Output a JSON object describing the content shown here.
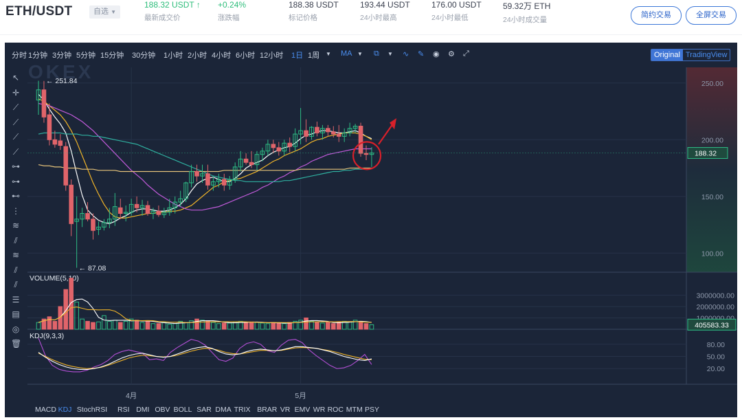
{
  "header": {
    "pair": "ETH/USDT",
    "fav_label": "自选",
    "last_price": "188.32 USDT",
    "last_price_label": "最新成交价",
    "change": "+0.24%",
    "change_label": "涨跌幅",
    "mark_price": "188.38 USDT",
    "mark_price_label": "标记价格",
    "high": "193.44 USDT",
    "high_label": "24小时最高",
    "low": "176.00 USDT",
    "low_label": "24小时最低",
    "volume": "59.32万 ETH",
    "volume_label": "24小时成交量",
    "btn_simple": "简约交易",
    "btn_full": "全屏交易",
    "up_arrow": "↑"
  },
  "toolbar": {
    "intervals": [
      "分时",
      "1分钟",
      "3分钟",
      "5分钟",
      "15分钟",
      "30分钟",
      "1小时",
      "2小时",
      "4小时",
      "6小时",
      "12小时",
      "1日",
      "1周"
    ],
    "selected_interval": "1日",
    "indicator": "MA",
    "view_original": "Original",
    "view_tradingview": "TradingView",
    "icons": [
      "caret-down-icon",
      "candle-type-icon",
      "line-icon",
      "draw-icon",
      "camera-icon",
      "gear-icon",
      "fullscreen-icon"
    ]
  },
  "sidebar_icons": [
    "cursor-icon",
    "crosshair-icon",
    "trendline-icon",
    "ray-icon",
    "extended-line-icon",
    "segment-icon",
    "horizontal-line-icon",
    "horizontal-ray-icon",
    "price-line-icon",
    "vertical-line-icon",
    "parallel-channel-icon",
    "pitchfork-icon",
    "fib-icon",
    "gann-icon",
    "fib-fan-icon",
    "stack-icon",
    "ruler-icon",
    "eye-icon",
    "trash-icon"
  ],
  "watermark": "OKEX",
  "colors": {
    "up": "#2ebd85",
    "down": "#e0646a",
    "ma5": "#ffffff",
    "ma10": "#f0b429",
    "ma20": "#c05ad9",
    "ma30": "#2fb0a0",
    "ma60": "#e6c37a",
    "bg": "#1b2538",
    "accent": "#3a76d8"
  },
  "indicator_tabs": [
    "MACD",
    "KDJ",
    "StochRSI",
    "RSI",
    "DMI",
    "OBV",
    "BOLL",
    "SAR",
    "DMA",
    "TRIX",
    "BRAR",
    "VR",
    "EMV",
    "WR",
    "ROC",
    "MTM",
    "PSY"
  ],
  "selected_indicator_tab": "KDJ",
  "chart_data": {
    "type": "candlestick",
    "price_axis": {
      "ticks": [
        "250.00",
        "200.00",
        "150.00",
        "100.00"
      ],
      "range": [
        85,
        262
      ]
    },
    "current_price_label": "188.32",
    "annotations": {
      "high": "← 251.84",
      "low": "← 87.08"
    },
    "x_labels": [
      {
        "index": 17,
        "label": "4月"
      },
      {
        "index": 48,
        "label": "5月"
      }
    ],
    "candles": [
      {
        "o": 235,
        "h": 252,
        "l": 222,
        "c": 244
      },
      {
        "o": 244,
        "h": 251.84,
        "l": 215,
        "c": 220
      },
      {
        "o": 222,
        "h": 232,
        "l": 195,
        "c": 200
      },
      {
        "o": 200,
        "h": 208,
        "l": 193,
        "c": 196
      },
      {
        "o": 199,
        "h": 205,
        "l": 191,
        "c": 195
      },
      {
        "o": 194,
        "h": 198,
        "l": 155,
        "c": 160
      },
      {
        "o": 160,
        "h": 165,
        "l": 115,
        "c": 126
      },
      {
        "o": 128,
        "h": 150,
        "l": 87.08,
        "c": 130
      },
      {
        "o": 130,
        "h": 140,
        "l": 123,
        "c": 135
      },
      {
        "o": 135,
        "h": 145,
        "l": 128,
        "c": 130
      },
      {
        "o": 130,
        "h": 135,
        "l": 112,
        "c": 120
      },
      {
        "o": 121,
        "h": 128,
        "l": 116,
        "c": 123
      },
      {
        "o": 123,
        "h": 130,
        "l": 120,
        "c": 127
      },
      {
        "o": 127,
        "h": 140,
        "l": 122,
        "c": 130
      },
      {
        "o": 130,
        "h": 153,
        "l": 124,
        "c": 141
      },
      {
        "o": 140,
        "h": 148,
        "l": 130,
        "c": 135
      },
      {
        "o": 135,
        "h": 142,
        "l": 128,
        "c": 136
      },
      {
        "o": 136,
        "h": 148,
        "l": 133,
        "c": 143
      },
      {
        "o": 143,
        "h": 150,
        "l": 136,
        "c": 140
      },
      {
        "o": 140,
        "h": 147,
        "l": 133,
        "c": 142
      },
      {
        "o": 142,
        "h": 146,
        "l": 133,
        "c": 135
      },
      {
        "o": 135,
        "h": 140,
        "l": 130,
        "c": 137
      },
      {
        "o": 137,
        "h": 142,
        "l": 132,
        "c": 134
      },
      {
        "o": 134,
        "h": 140,
        "l": 131,
        "c": 136
      },
      {
        "o": 136,
        "h": 148,
        "l": 133,
        "c": 140
      },
      {
        "o": 140,
        "h": 150,
        "l": 135,
        "c": 145
      },
      {
        "o": 145,
        "h": 155,
        "l": 141,
        "c": 148
      },
      {
        "o": 148,
        "h": 163,
        "l": 145,
        "c": 162
      },
      {
        "o": 162,
        "h": 178,
        "l": 158,
        "c": 172
      },
      {
        "o": 172,
        "h": 178,
        "l": 163,
        "c": 168
      },
      {
        "o": 168,
        "h": 178,
        "l": 162,
        "c": 170
      },
      {
        "o": 170,
        "h": 178,
        "l": 156,
        "c": 160
      },
      {
        "o": 160,
        "h": 168,
        "l": 155,
        "c": 163
      },
      {
        "o": 163,
        "h": 170,
        "l": 158,
        "c": 165
      },
      {
        "o": 165,
        "h": 170,
        "l": 155,
        "c": 160
      },
      {
        "o": 160,
        "h": 168,
        "l": 156,
        "c": 165
      },
      {
        "o": 165,
        "h": 180,
        "l": 162,
        "c": 176
      },
      {
        "o": 176,
        "h": 190,
        "l": 172,
        "c": 183
      },
      {
        "o": 183,
        "h": 188,
        "l": 178,
        "c": 180
      },
      {
        "o": 180,
        "h": 190,
        "l": 175,
        "c": 178
      },
      {
        "o": 178,
        "h": 190,
        "l": 173,
        "c": 187
      },
      {
        "o": 187,
        "h": 193,
        "l": 181,
        "c": 190
      },
      {
        "o": 190,
        "h": 200,
        "l": 186,
        "c": 196
      },
      {
        "o": 196,
        "h": 200,
        "l": 188,
        "c": 193
      },
      {
        "o": 193,
        "h": 198,
        "l": 186,
        "c": 190
      },
      {
        "o": 190,
        "h": 200,
        "l": 186,
        "c": 197
      },
      {
        "o": 197,
        "h": 202,
        "l": 189,
        "c": 194
      },
      {
        "o": 194,
        "h": 210,
        "l": 190,
        "c": 205
      },
      {
        "o": 205,
        "h": 228,
        "l": 196,
        "c": 208
      },
      {
        "o": 208,
        "h": 218,
        "l": 198,
        "c": 203
      },
      {
        "o": 203,
        "h": 212,
        "l": 200,
        "c": 211
      },
      {
        "o": 211,
        "h": 216,
        "l": 203,
        "c": 206
      },
      {
        "o": 206,
        "h": 213,
        "l": 200,
        "c": 210
      },
      {
        "o": 210,
        "h": 213,
        "l": 203,
        "c": 207
      },
      {
        "o": 207,
        "h": 212,
        "l": 202,
        "c": 205
      },
      {
        "o": 205,
        "h": 213,
        "l": 198,
        "c": 203
      },
      {
        "o": 203,
        "h": 210,
        "l": 198,
        "c": 206
      },
      {
        "o": 206,
        "h": 215,
        "l": 203,
        "c": 210
      },
      {
        "o": 210,
        "h": 214,
        "l": 206,
        "c": 212
      },
      {
        "o": 212,
        "h": 215,
        "l": 185,
        "c": 188
      },
      {
        "o": 188,
        "h": 195,
        "l": 182,
        "c": 187
      },
      {
        "o": 187,
        "h": 193.44,
        "l": 176,
        "c": 188.32
      }
    ],
    "ma_lines": [
      {
        "name": "ma5",
        "values": [
          240,
          235,
          227,
          220,
          214,
          206,
          190,
          170,
          151,
          138,
          133,
          129,
          127,
          126,
          128,
          131,
          133,
          136,
          138,
          139,
          139,
          138,
          137,
          137,
          138,
          140,
          143,
          148,
          155,
          161,
          164,
          166,
          167,
          165,
          163,
          163,
          166,
          170,
          175,
          178,
          180,
          182,
          186,
          189,
          191,
          193,
          194,
          197,
          201,
          204,
          205,
          207,
          208,
          208,
          207,
          206,
          206,
          207,
          208,
          206,
          203,
          201
        ]
      },
      {
        "name": "ma10",
        "values": [
          236,
          234,
          230,
          226,
          222,
          216,
          208,
          198,
          186,
          174,
          162,
          152,
          143,
          136,
          132,
          131,
          131,
          132,
          133,
          134,
          135,
          135,
          136,
          136,
          137,
          137,
          138,
          140,
          142,
          146,
          150,
          154,
          158,
          160,
          163,
          164,
          165,
          166,
          168,
          170,
          172,
          175,
          178,
          181,
          183,
          186,
          188,
          190,
          192,
          195,
          198,
          200,
          201,
          203,
          204,
          205,
          206,
          206,
          206,
          205,
          203,
          200
        ]
      },
      {
        "name": "ma20",
        "values": [
          232,
          231,
          230,
          228,
          226,
          224,
          222,
          219,
          216,
          212,
          208,
          203,
          198,
          193,
          188,
          183,
          178,
          173,
          169,
          165,
          160,
          156,
          152,
          149,
          146,
          143,
          141,
          139,
          138,
          138,
          138,
          139,
          140,
          141,
          143,
          145,
          147,
          149,
          151,
          153,
          155,
          158,
          160,
          163,
          166,
          168,
          171,
          173,
          176,
          178,
          181,
          183,
          185,
          187,
          188,
          189,
          190,
          191,
          192,
          192,
          192,
          192
        ]
      },
      {
        "name": "ma30",
        "values": [
          205,
          206,
          206,
          206,
          206,
          205,
          205,
          205,
          204,
          204,
          203,
          203,
          202,
          201,
          200,
          199,
          198,
          197,
          196,
          194,
          192,
          190,
          188,
          186,
          184,
          182,
          180,
          178,
          176,
          174,
          172,
          170,
          168,
          167,
          166,
          165,
          164,
          164,
          163,
          163,
          163,
          163,
          163,
          163,
          163,
          164,
          164,
          165,
          166,
          167,
          168,
          169,
          170,
          171,
          172,
          172,
          173,
          173,
          174,
          174,
          174,
          175
        ]
      },
      {
        "name": "ma60",
        "values": [
          178,
          177,
          177,
          176,
          176,
          175,
          175,
          175,
          174,
          174,
          174,
          173,
          173,
          173,
          173,
          172,
          172,
          172,
          172,
          172,
          172,
          172,
          172,
          172,
          172,
          172,
          172,
          172,
          172,
          172,
          172,
          172,
          172,
          172,
          173,
          173,
          173,
          173,
          173,
          173,
          173,
          173,
          173,
          173,
          173,
          173,
          173,
          173,
          174,
          174,
          174,
          174,
          174,
          174,
          174,
          174,
          174,
          175,
          175,
          175,
          175,
          175
        ]
      }
    ],
    "volume": {
      "title": "VOLUME(5,10)",
      "ticks": [
        "3000000.00",
        "2000000.00",
        "1000000.00"
      ],
      "current_label": "405583.33",
      "values": [
        600000,
        900000,
        1100000,
        700000,
        2000000,
        3500000,
        4500000,
        2400000,
        900000,
        700000,
        600000,
        650000,
        1200000,
        700000,
        800000,
        600000,
        700000,
        900000,
        800000,
        600000,
        700000,
        500000,
        500000,
        600000,
        450000,
        500000,
        700000,
        600000,
        750000,
        900000,
        800000,
        700000,
        600000,
        500000,
        550000,
        550000,
        650000,
        700000,
        600000,
        650000,
        600000,
        550000,
        500000,
        600000,
        550000,
        500000,
        600000,
        700000,
        800000,
        1000000,
        700000,
        600000,
        550000,
        600000,
        500000,
        650000,
        700000,
        650000,
        800000,
        700000,
        500000,
        400000
      ]
    },
    "kdj": {
      "title": "KDJ(9,3,3)",
      "ticks": [
        "80.00",
        "50.00",
        "20.00"
      ],
      "k": [
        60,
        48,
        38,
        30,
        24,
        20,
        18,
        18,
        20,
        24,
        30,
        38,
        46,
        52,
        56,
        58,
        54,
        50,
        48,
        50,
        56,
        62,
        68,
        72,
        74,
        70,
        62,
        56,
        54,
        56,
        62,
        66,
        68,
        66,
        64,
        66,
        70,
        74,
        74,
        72,
        70,
        66,
        62,
        56,
        50,
        46,
        42,
        40,
        44
      ],
      "d": [
        58,
        50,
        42,
        35,
        29,
        25,
        22,
        20,
        21,
        23,
        28,
        34,
        40,
        46,
        50,
        53,
        52,
        50,
        49,
        50,
        53,
        58,
        63,
        67,
        70,
        69,
        65,
        60,
        57,
        56,
        59,
        62,
        65,
        65,
        64,
        65,
        68,
        71,
        72,
        71,
        70,
        67,
        64,
        60,
        55,
        51,
        47,
        43,
        42
      ],
      "j": [
        95,
        52,
        28,
        18,
        14,
        12,
        12,
        16,
        24,
        30,
        40,
        55,
        62,
        66,
        62,
        58,
        42,
        44,
        40,
        60,
        72,
        82,
        92,
        88,
        78,
        60,
        42,
        38,
        46,
        70,
        82,
        86,
        80,
        64,
        60,
        78,
        90,
        92,
        84,
        66,
        52,
        40,
        28,
        20,
        22,
        28,
        40,
        55,
        30
      ]
    }
  }
}
